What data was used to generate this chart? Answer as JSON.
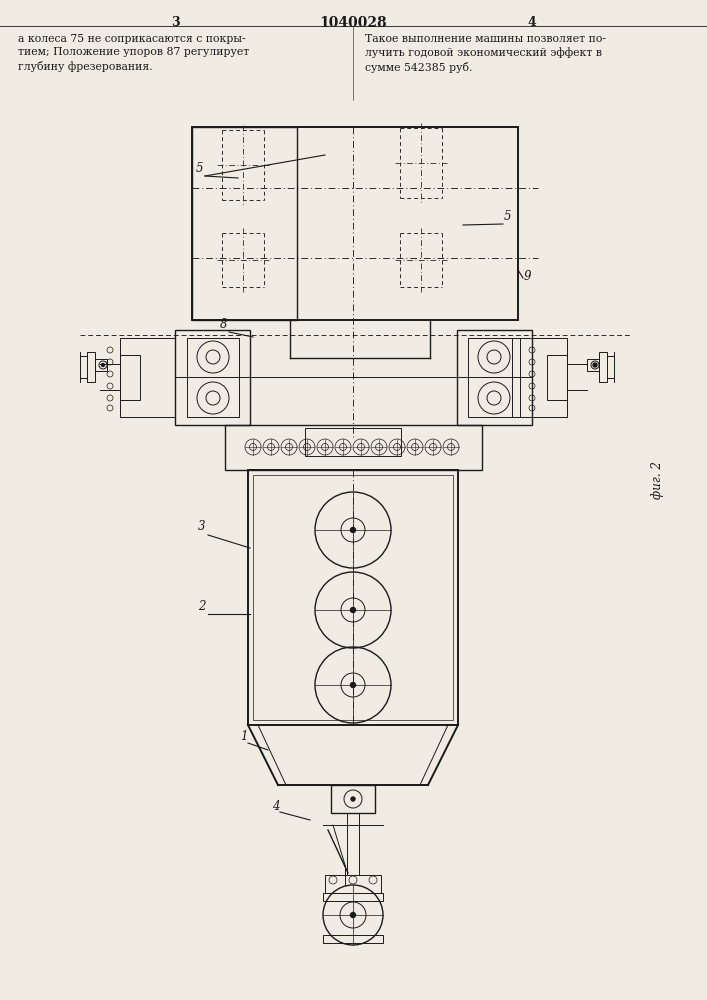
{
  "title": "1040028",
  "page_left": "3",
  "page_right": "4",
  "fig_label": "фиг. 2",
  "text_left": "а колеса 75 не соприкасаются с покры-\nтием; Положение упоров 87 регулирует\nглубину фрезерования.",
  "text_right": "Такое выполнение машины позволяет по-\nлучить годовой экономический эффект в\nсумме 542385 руб.",
  "bg_color": "#f0ece4",
  "line_color": "#1a1a1a",
  "dash_color": "#2a2a2a"
}
